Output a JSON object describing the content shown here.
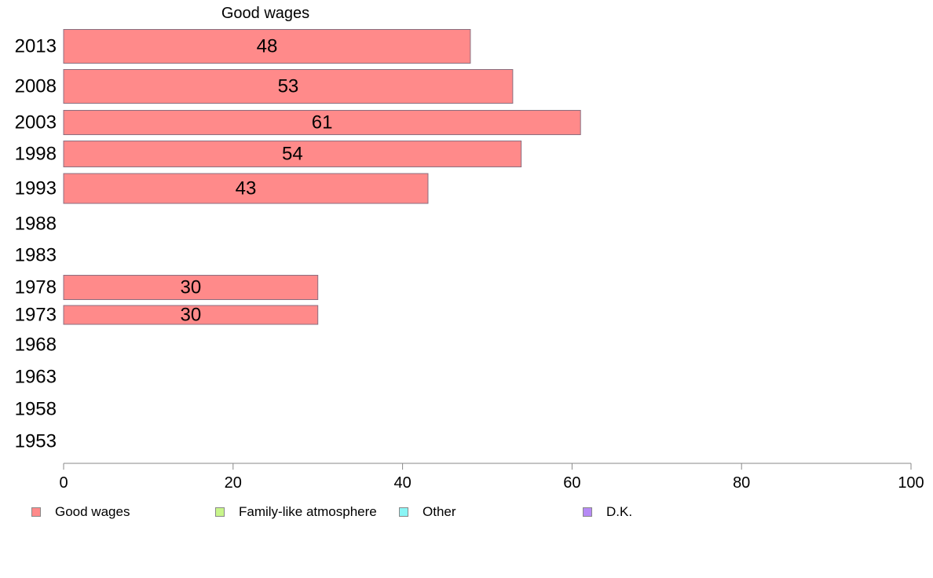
{
  "chart_data": {
    "type": "bar",
    "orientation": "horizontal",
    "title": "Good wages",
    "categories": [
      "2013",
      "2008",
      "2003",
      "1998",
      "1993",
      "1988",
      "1983",
      "1978",
      "1973",
      "1968",
      "1963",
      "1958",
      "1953"
    ],
    "series": [
      {
        "name": "Good wages",
        "color": "#ff8a8a",
        "values": [
          48,
          53,
          61,
          54,
          43,
          null,
          null,
          30,
          30,
          null,
          null,
          null,
          null
        ]
      }
    ],
    "xlim": [
      0,
      100
    ],
    "xticks": [
      "0",
      "20",
      "40",
      "60",
      "80",
      "100"
    ],
    "grid": false,
    "legend_position": "bottom"
  },
  "legend": {
    "items": [
      {
        "label": "Good wages",
        "color": "#ff8a8a"
      },
      {
        "label": "Family-like atmosphere",
        "color": "#c8f58a"
      },
      {
        "label": "Other",
        "color": "#8af5f5"
      },
      {
        "label": "D.K.",
        "color": "#b68af5"
      }
    ]
  }
}
